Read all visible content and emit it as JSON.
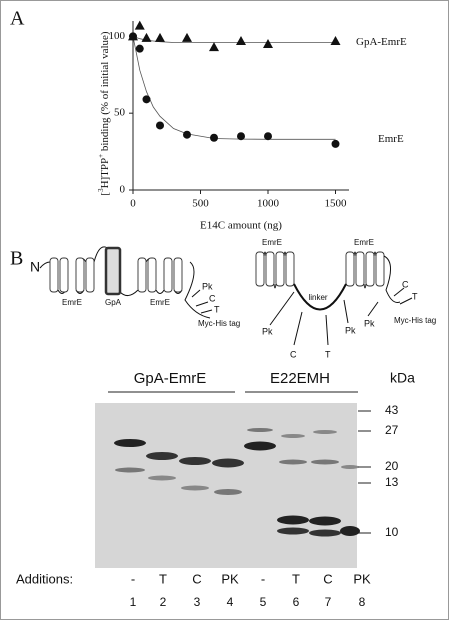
{
  "panel_labels": [
    "A",
    "B"
  ],
  "chart_data": {
    "type": "scatter",
    "ylabel": [
      "[",
      "3",
      "H]TPP",
      "+",
      " binding (% of initial value)"
    ],
    "xlabel": "E14C amount (ng)",
    "xlim": [
      0,
      1600
    ],
    "xticks": [
      0,
      500,
      1000,
      1500
    ],
    "ylim": [
      0,
      110
    ],
    "yticks": [
      0,
      50,
      100
    ],
    "series": [
      {
        "name": "GpA-EmrE",
        "marker": "triangle",
        "color": "#111111",
        "x": [
          0,
          50,
          100,
          200,
          400,
          600,
          800,
          1000,
          1500
        ],
        "values": [
          100,
          107,
          99,
          99,
          99,
          93,
          97,
          95,
          97
        ],
        "curve": {
          "x": [
            0,
            50,
            100,
            150,
            200,
            300,
            400,
            600,
            800,
            1000,
            1500
          ],
          "values": [
            100,
            98.5,
            97.5,
            97,
            96.5,
            96,
            96,
            96,
            96,
            96,
            96
          ]
        }
      },
      {
        "name": "EmrE",
        "marker": "circle",
        "color": "#111111",
        "x": [
          0,
          50,
          100,
          200,
          400,
          600,
          800,
          1000,
          1500
        ],
        "values": [
          100,
          92,
          59,
          42,
          36,
          34,
          35,
          35,
          30
        ],
        "curve": {
          "x": [
            0,
            50,
            100,
            150,
            200,
            300,
            400,
            600,
            800,
            1000,
            1500
          ],
          "values": [
            100,
            78,
            64,
            54,
            48,
            40,
            36.5,
            33.5,
            33.1,
            33,
            33
          ]
        }
      }
    ]
  },
  "diagram": {
    "construct_1": {
      "n_term": "N",
      "domains": [
        "EmrE",
        "GpA",
        "EmrE"
      ],
      "sites": [
        "Pk",
        "C",
        "T"
      ],
      "tag": "Myc-His tag"
    },
    "construct_2": {
      "domains": [
        "EmrE",
        "EmrE"
      ],
      "linker": "linker",
      "linker_sites": [
        "Pk",
        "C",
        "T",
        "Pk"
      ],
      "sites": [
        "Pk",
        "C",
        "T"
      ],
      "tag": "Myc-His tag"
    }
  },
  "gel": {
    "groups": [
      "GpA-EmrE",
      "E22EMH"
    ],
    "unit": "kDa",
    "markers": [
      43,
      27,
      20,
      13,
      10
    ],
    "additions_label": "Additions:",
    "additions": [
      "-",
      "T",
      "C",
      "PK",
      "-",
      "T",
      "C",
      "PK"
    ],
    "lanes": [
      1,
      2,
      3,
      4,
      5,
      6,
      7,
      8
    ]
  }
}
